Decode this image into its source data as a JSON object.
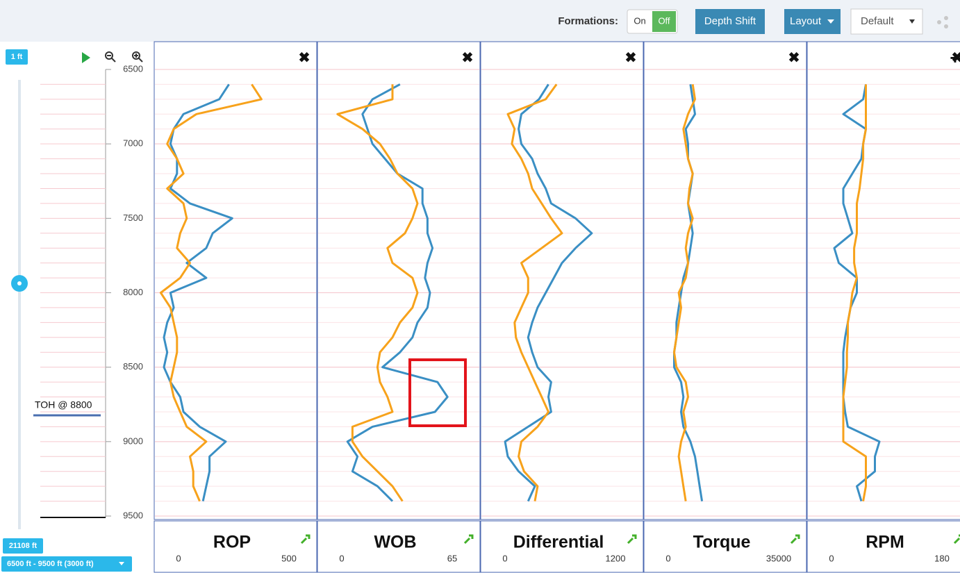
{
  "toolbar": {
    "formations_label": "Formations:",
    "on": "On",
    "off": "Off",
    "depth_shift": "Depth Shift",
    "layout": "Layout",
    "preset": "Default"
  },
  "left_panel": {
    "scale": "1 ft",
    "annotation": "TOH @ 8800",
    "total_depth": "21108 ft",
    "range": "6500 ft - 9500 ft (3000 ft)"
  },
  "depth_axis": {
    "ylim": [
      6500,
      9500
    ],
    "yticks": [
      6500,
      7000,
      7500,
      8000,
      8500,
      9000,
      9500
    ],
    "depths": [
      6600,
      6700,
      6800,
      6900,
      7000,
      7100,
      7200,
      7300,
      7400,
      7500,
      7600,
      7700,
      7800,
      7900,
      8000,
      8100,
      8200,
      8300,
      8400,
      8500,
      8600,
      8700,
      8800,
      8900,
      9000,
      9100,
      9200,
      9300,
      9400
    ]
  },
  "tracks": [
    {
      "title": "ROP",
      "xlim": [
        0,
        500
      ],
      "series": [
        {
          "color": "#3a8fc4",
          "values": [
            230,
            200,
            90,
            60,
            50,
            70,
            70,
            50,
            110,
            240,
            180,
            160,
            100,
            160,
            50,
            60,
            40,
            30,
            40,
            30,
            50,
            80,
            90,
            140,
            220,
            170,
            170,
            160,
            150
          ]
        },
        {
          "color": "#f7a21b",
          "values": [
            300,
            330,
            130,
            60,
            40,
            70,
            90,
            40,
            90,
            100,
            80,
            70,
            110,
            80,
            20,
            50,
            60,
            70,
            70,
            60,
            50,
            60,
            80,
            100,
            160,
            110,
            120,
            120,
            140
          ]
        }
      ]
    },
    {
      "title": "WOB",
      "xlim": [
        0,
        65
      ],
      "series": [
        {
          "color": "#3a8fc4",
          "values": [
            33,
            22,
            18,
            20,
            22,
            27,
            32,
            42,
            42,
            44,
            44,
            46,
            44,
            43,
            45,
            44,
            40,
            38,
            33,
            26,
            48,
            52,
            47,
            22,
            12,
            16,
            14,
            24,
            30
          ]
        },
        {
          "color": "#f7a21b",
          "values": [
            30,
            30,
            8,
            18,
            25,
            29,
            32,
            38,
            40,
            38,
            35,
            28,
            30,
            38,
            40,
            38,
            33,
            30,
            25,
            24,
            25,
            28,
            30,
            14,
            14,
            18,
            24,
            30,
            34
          ]
        }
      ]
    },
    {
      "title": "Differential",
      "xlim": [
        0,
        1200
      ],
      "series": [
        {
          "color": "#3a8fc4",
          "values": [
            500,
            430,
            300,
            280,
            300,
            380,
            420,
            480,
            520,
            700,
            820,
            700,
            600,
            540,
            480,
            420,
            380,
            350,
            380,
            420,
            520,
            500,
            520,
            350,
            180,
            200,
            280,
            400,
            350
          ]
        },
        {
          "color": "#f7a21b",
          "values": [
            560,
            480,
            200,
            250,
            230,
            300,
            350,
            380,
            450,
            520,
            600,
            450,
            300,
            350,
            350,
            300,
            250,
            260,
            300,
            350,
            400,
            450,
            500,
            420,
            300,
            280,
            320,
            420,
            400
          ]
        }
      ]
    },
    {
      "title": "Torque",
      "xlim": [
        0,
        35000
      ],
      "series": [
        {
          "color": "#3a8fc4",
          "values": [
            10000,
            10500,
            11000,
            9000,
            9500,
            9500,
            10500,
            10000,
            9500,
            10000,
            10500,
            10000,
            9500,
            8500,
            8000,
            7500,
            7000,
            7000,
            6500,
            6500,
            8000,
            8500,
            8000,
            8500,
            10000,
            11000,
            11500,
            12000,
            12500
          ]
        },
        {
          "color": "#f7a21b",
          "values": [
            10500,
            11000,
            9500,
            8500,
            9000,
            9500,
            10500,
            9800,
            9500,
            10500,
            9500,
            9000,
            9500,
            9000,
            7500,
            8000,
            7500,
            7000,
            6500,
            7000,
            9000,
            9500,
            8500,
            9000,
            8000,
            7500,
            8000,
            8500,
            9000
          ]
        }
      ]
    },
    {
      "title": "RPM",
      "xlim": [
        0,
        180
      ],
      "series": [
        {
          "color": "#3a8fc4",
          "values": [
            65,
            62,
            40,
            65,
            62,
            60,
            50,
            40,
            40,
            45,
            50,
            30,
            35,
            55,
            55,
            48,
            45,
            42,
            40,
            40,
            40,
            40,
            42,
            45,
            80,
            75,
            75,
            55,
            60
          ]
        },
        {
          "color": "#f7a21b",
          "values": [
            65,
            65,
            65,
            65,
            62,
            62,
            60,
            58,
            55,
            55,
            55,
            52,
            52,
            55,
            50,
            48,
            45,
            45,
            44,
            44,
            42,
            40,
            40,
            40,
            40,
            65,
            65,
            65,
            62
          ]
        }
      ]
    }
  ]
}
